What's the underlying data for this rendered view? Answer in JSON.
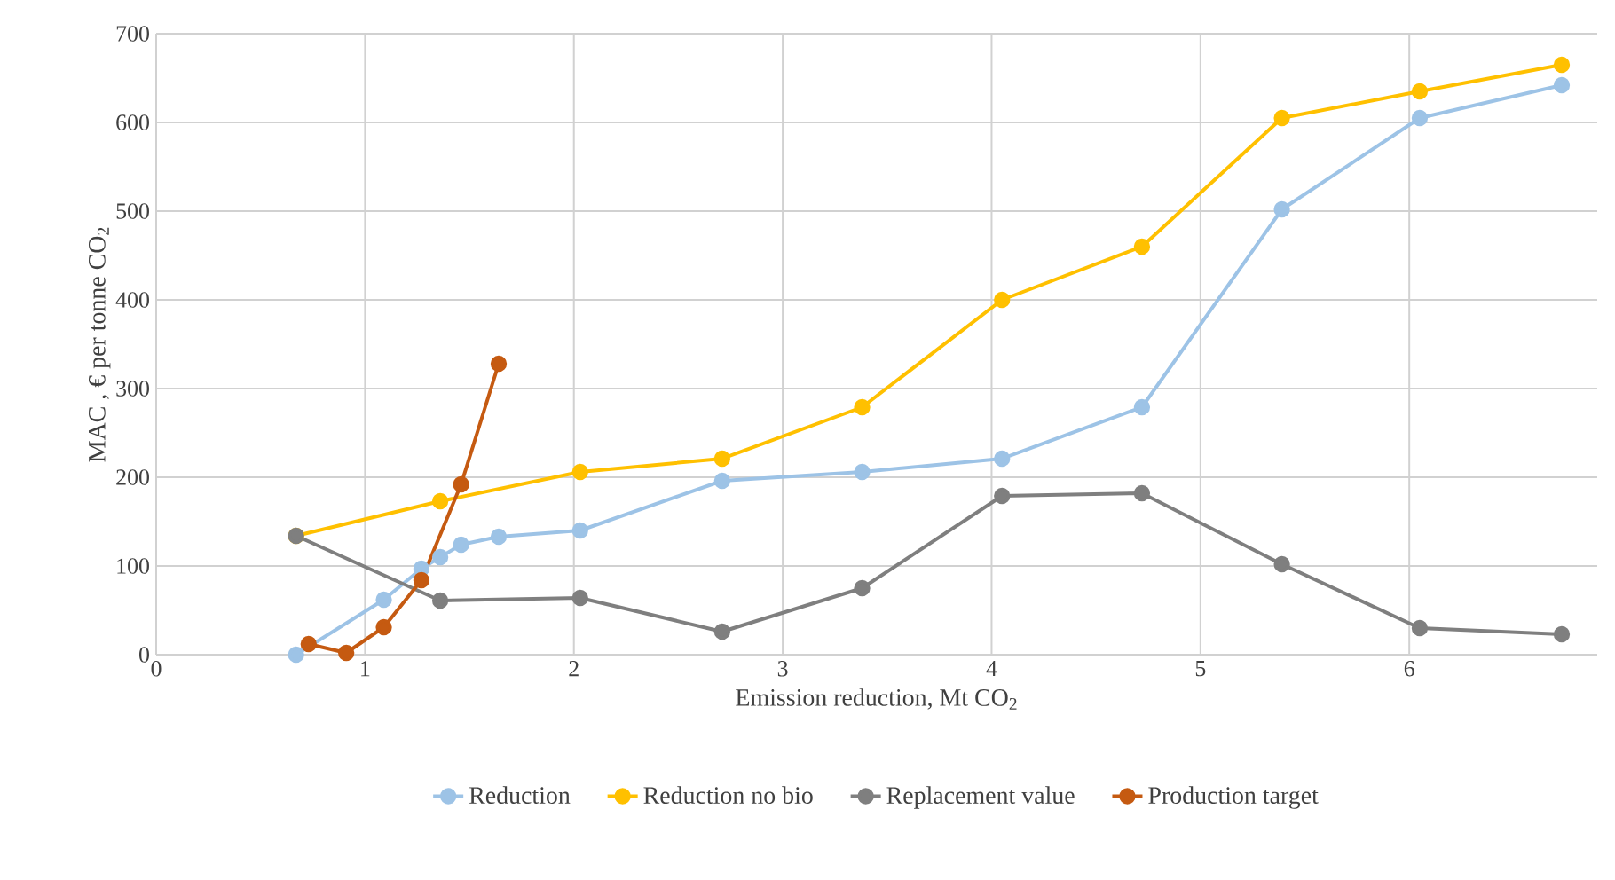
{
  "chart_data": {
    "type": "line",
    "xlabel": "Emission reduction, Mt CO$_{2}$",
    "ylabel": "MAC , € per tonne CO$_{2}$",
    "xlim": [
      0,
      6.9
    ],
    "ylim": [
      0,
      700
    ],
    "xticks": [
      0,
      1,
      2,
      3,
      4,
      5,
      6
    ],
    "yticks": [
      0,
      100,
      200,
      300,
      400,
      500,
      600,
      700
    ],
    "grid": true,
    "legend": "bottom",
    "marker": "circle",
    "line_style": "solid",
    "series": [
      {
        "name": "Reduction",
        "color": "#9dc3e6",
        "x": [
          0.67,
          0.91,
          1.09,
          1.27,
          1.36,
          1.46,
          1.64,
          2.03,
          2.71,
          3.38,
          4.05,
          4.72,
          5.39,
          6.05,
          6.73
        ],
        "values": [
          0,
          null,
          62,
          97,
          110,
          124,
          133,
          140,
          196,
          206,
          221,
          279,
          502,
          605,
          642
        ]
      },
      {
        "name": "Reduction no bio",
        "color": "#ffc000",
        "x": [
          0.67,
          1.36,
          2.03,
          2.71,
          3.38,
          4.05,
          4.72,
          5.39,
          6.05,
          6.73
        ],
        "values": [
          134,
          173,
          206,
          221,
          279,
          400,
          460,
          605,
          635,
          665
        ]
      },
      {
        "name": "Replacement value",
        "color": "#7f7f7f",
        "x": [
          0.67,
          1.36,
          2.03,
          2.71,
          3.38,
          4.05,
          4.72,
          5.39,
          6.05,
          6.73
        ],
        "values": [
          134,
          61,
          64,
          26,
          75,
          179,
          182,
          102,
          30,
          23
        ]
      },
      {
        "name": "Production target",
        "color": "#c55a11",
        "x": [
          0.73,
          0.91,
          1.09,
          1.27,
          1.46,
          1.64
        ],
        "values": [
          12,
          2,
          31,
          84,
          192,
          328
        ]
      }
    ]
  }
}
